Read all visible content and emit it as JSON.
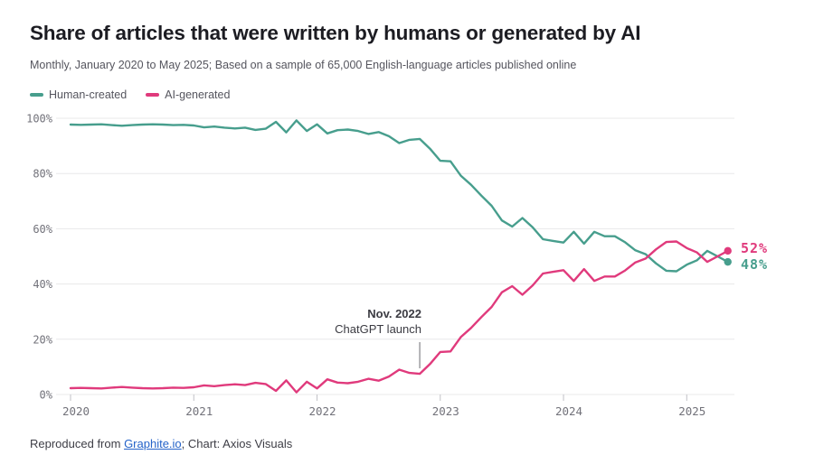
{
  "header": {
    "title": "Share of articles that were written by humans or generated by AI",
    "subtitle": "Monthly, January 2020 to May 2025; Based on a sample of 65,000 English-language articles published online"
  },
  "legend": {
    "items": [
      {
        "label": "Human-created",
        "color": "#479e8d"
      },
      {
        "label": "AI-generated",
        "color": "#e03a7c"
      }
    ]
  },
  "annotation": {
    "line1": "Nov. 2022",
    "line2": "ChatGPT launch",
    "month": "2022-11"
  },
  "footer": {
    "prefix": "Reproduced from ",
    "link_label": "Graphite.io",
    "suffix": "; Chart: Axios Visuals",
    "link_color": "#2563c9"
  },
  "colors": {
    "human": "#479e8d",
    "ai": "#e03a7c",
    "gridline": "#e8e8ea",
    "tick": "#c2c2c7",
    "tick_label": "#72727a",
    "annotation_line": "#6b6b70"
  },
  "chart_data": {
    "type": "line",
    "title": "Share of articles that were written by humans or generated by AI",
    "x_unit": "month",
    "xlabel": "",
    "ylabel": "",
    "ylim": [
      0,
      100
    ],
    "grid": "horizontal",
    "legend_position": "top-left",
    "yticks": [
      "0%",
      "20%",
      "40%",
      "60%",
      "80%",
      "100%"
    ],
    "ytick_values": [
      0,
      20,
      40,
      60,
      80,
      100
    ],
    "xticks": [
      "2020",
      "2021",
      "2022",
      "2023",
      "2024",
      "2025"
    ],
    "months": [
      "2020-01",
      "2020-02",
      "2020-03",
      "2020-04",
      "2020-05",
      "2020-06",
      "2020-07",
      "2020-08",
      "2020-09",
      "2020-10",
      "2020-11",
      "2020-12",
      "2021-01",
      "2021-02",
      "2021-03",
      "2021-04",
      "2021-05",
      "2021-06",
      "2021-07",
      "2021-08",
      "2021-09",
      "2021-10",
      "2021-11",
      "2021-12",
      "2022-01",
      "2022-02",
      "2022-03",
      "2022-04",
      "2022-05",
      "2022-06",
      "2022-07",
      "2022-08",
      "2022-09",
      "2022-10",
      "2022-11",
      "2022-12",
      "2023-01",
      "2023-02",
      "2023-03",
      "2023-04",
      "2023-05",
      "2023-06",
      "2023-07",
      "2023-08",
      "2023-09",
      "2023-10",
      "2023-11",
      "2023-12",
      "2024-01",
      "2024-02",
      "2024-03",
      "2024-04",
      "2024-05",
      "2024-06",
      "2024-07",
      "2024-08",
      "2024-09",
      "2024-10",
      "2024-11",
      "2024-12",
      "2025-01",
      "2025-02",
      "2025-03",
      "2025-04",
      "2025-05"
    ],
    "series": [
      {
        "name": "Human-created",
        "color": "#479e8d",
        "end_label": "48%",
        "end_value": 48,
        "values": [
          97.7,
          97.6,
          97.7,
          97.8,
          97.5,
          97.3,
          97.5,
          97.7,
          97.8,
          97.7,
          97.5,
          97.6,
          97.4,
          96.7,
          97.0,
          96.6,
          96.3,
          96.6,
          95.8,
          96.2,
          98.7,
          94.9,
          99.2,
          95.4,
          97.8,
          94.5,
          95.7,
          95.9,
          95.4,
          94.3,
          95.0,
          93.5,
          91.0,
          92.2,
          92.5,
          89.0,
          84.6,
          84.4,
          79.2,
          75.9,
          72.0,
          68.3,
          63.0,
          60.8,
          63.9,
          60.5,
          56.2,
          55.6,
          55.0,
          58.9,
          54.6,
          58.9,
          57.3,
          57.3,
          55.1,
          52.2,
          50.8,
          47.5,
          44.8,
          44.6,
          47.0,
          48.6,
          52.0,
          50.0,
          48.0
        ]
      },
      {
        "name": "AI-generated",
        "color": "#e03a7c",
        "end_label": "52%",
        "end_value": 52,
        "values": [
          2.3,
          2.4,
          2.3,
          2.2,
          2.5,
          2.7,
          2.5,
          2.3,
          2.2,
          2.3,
          2.5,
          2.4,
          2.6,
          3.3,
          3.0,
          3.4,
          3.7,
          3.4,
          4.2,
          3.8,
          1.3,
          5.1,
          0.8,
          4.6,
          2.2,
          5.5,
          4.3,
          4.1,
          4.6,
          5.7,
          5.0,
          6.5,
          9.0,
          7.8,
          7.5,
          11.0,
          15.4,
          15.6,
          20.8,
          24.1,
          28.0,
          31.7,
          37.0,
          39.2,
          36.1,
          39.5,
          43.8,
          44.4,
          45.0,
          41.1,
          45.4,
          41.1,
          42.7,
          42.7,
          44.9,
          47.8,
          49.2,
          52.5,
          55.2,
          55.4,
          53.0,
          51.4,
          48.0,
          50.0,
          52.0
        ]
      }
    ]
  }
}
